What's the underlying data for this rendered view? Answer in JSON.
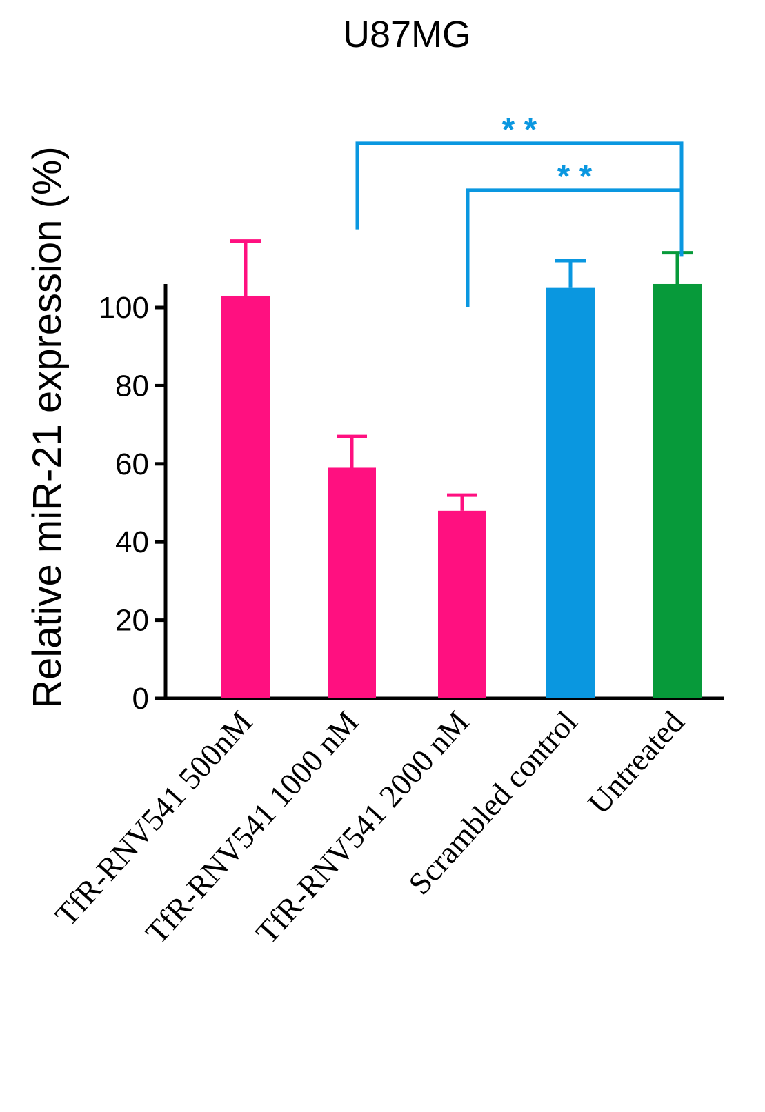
{
  "chart_data": {
    "type": "bar",
    "title": "U87MG",
    "xlabel": "",
    "ylabel": "Relative miR-21 expression (%)",
    "ylim": [
      0,
      106
    ],
    "yticks": [
      0,
      20,
      40,
      60,
      80,
      100
    ],
    "categories": [
      "TfR-RNV541 500nM",
      "TfR-RNV541 1000 nM",
      "TfR-RNV541 2000 nM",
      "Scrambled control",
      "Untreated"
    ],
    "values": [
      103,
      59,
      48,
      105,
      106
    ],
    "errors": [
      14,
      8,
      4,
      7,
      8
    ],
    "colors": [
      "#FF1080",
      "#FF1080",
      "#FF1080",
      "#0A97E0",
      "#079A3A"
    ],
    "annotations": [
      {
        "label": "* *",
        "from": "TfR-RNV541 1000 nM",
        "to": "Untreated",
        "color": "#0A97E0",
        "from_value": 120,
        "to_value": 113,
        "bracket_value": 142
      },
      {
        "label": "* *",
        "from": "TfR-RNV541 2000 nM",
        "to": "Untreated",
        "color": "#0A97E0",
        "from_value": 100,
        "to_value": 113,
        "bracket_value": 130
      }
    ]
  }
}
